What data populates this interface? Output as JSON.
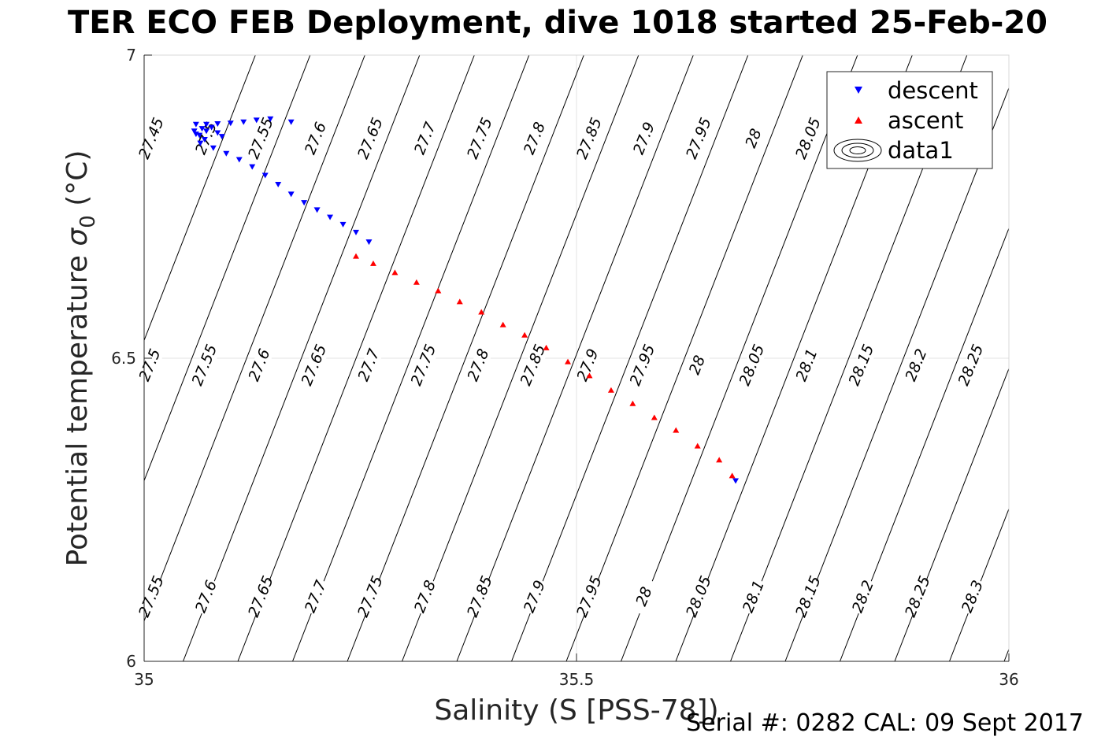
{
  "title": "TER ECO FEB Deployment, dive 1018 started 25-Feb-20",
  "footer": "Serial #: 0282  CAL: 09 Sept 2017",
  "chart_data": {
    "type": "scatter",
    "xlabel": "Salinity (S [PSS-78])",
    "ylabel_prefix": "Potential temperature ",
    "ylabel_symbol": "σ",
    "ylabel_sub": "0",
    "ylabel_suffix": " (°C)",
    "xlim": [
      35,
      36
    ],
    "ylim": [
      6,
      7
    ],
    "xticks": [
      35,
      35.5,
      36
    ],
    "yticks": [
      6,
      6.5,
      7
    ],
    "xtick_labels": [
      "35",
      "35.5",
      "36"
    ],
    "ytick_labels": [
      "6",
      "6.5",
      "7"
    ],
    "grid": true,
    "legend_position": "top-right",
    "series": [
      {
        "name": "descent",
        "marker": "triangle-down",
        "color": "#0000ff",
        "points": [
          [
            35.17,
            6.89
          ],
          [
            35.146,
            6.895
          ],
          [
            35.13,
            6.893
          ],
          [
            35.115,
            6.89
          ],
          [
            35.1,
            6.888
          ],
          [
            35.085,
            6.887
          ],
          [
            35.072,
            6.886
          ],
          [
            35.06,
            6.886
          ],
          [
            35.067,
            6.879
          ],
          [
            35.078,
            6.881
          ],
          [
            35.085,
            6.872
          ],
          [
            35.072,
            6.875
          ],
          [
            35.09,
            6.866
          ],
          [
            35.064,
            6.868
          ],
          [
            35.07,
            6.861
          ],
          [
            35.06,
            6.87
          ],
          [
            35.058,
            6.875
          ],
          [
            35.065,
            6.855
          ],
          [
            35.08,
            6.847
          ],
          [
            35.095,
            6.838
          ],
          [
            35.11,
            6.828
          ],
          [
            35.125,
            6.816
          ],
          [
            35.14,
            6.802
          ],
          [
            35.155,
            6.787
          ],
          [
            35.17,
            6.771
          ],
          [
            35.185,
            6.757
          ],
          [
            35.2,
            6.745
          ],
          [
            35.215,
            6.733
          ],
          [
            35.23,
            6.721
          ],
          [
            35.245,
            6.708
          ],
          [
            35.26,
            6.692
          ],
          [
            35.684,
            6.298
          ]
        ]
      },
      {
        "name": "ascent",
        "marker": "triangle-up",
        "color": "#ff0000",
        "points": [
          [
            35.245,
            6.668
          ],
          [
            35.265,
            6.656
          ],
          [
            35.29,
            6.641
          ],
          [
            35.315,
            6.625
          ],
          [
            35.34,
            6.611
          ],
          [
            35.365,
            6.593
          ],
          [
            35.39,
            6.576
          ],
          [
            35.415,
            6.555
          ],
          [
            35.44,
            6.538
          ],
          [
            35.465,
            6.517
          ],
          [
            35.49,
            6.494
          ],
          [
            35.515,
            6.471
          ],
          [
            35.54,
            6.447
          ],
          [
            35.565,
            6.425
          ],
          [
            35.59,
            6.402
          ],
          [
            35.615,
            6.381
          ],
          [
            35.64,
            6.355
          ],
          [
            35.665,
            6.332
          ],
          [
            35.68,
            6.306
          ]
        ]
      }
    ],
    "legend_extra_entry": "data1",
    "contour_labels_top": [
      "27.45",
      "27.5",
      "27.55",
      "27.6",
      "27.65",
      "27.7",
      "27.75",
      "27.8",
      "27.85",
      "27.9",
      "27.95",
      "28",
      "28.05"
    ],
    "contour_labels_middle": [
      "27.5",
      "27.55",
      "27.6",
      "27.65",
      "27.7",
      "27.75",
      "27.8",
      "27.85",
      "27.9",
      "27.95",
      "28",
      "28.05",
      "28.1",
      "28.15",
      "28.2",
      "28.25"
    ],
    "contour_labels_bottom": [
      "27.55",
      "27.6",
      "27.65",
      "27.7",
      "27.75",
      "27.8",
      "27.85",
      "27.9",
      "27.95",
      "28",
      "28.05",
      "28.1",
      "28.15",
      "28.2",
      "28.25",
      "28.3"
    ]
  }
}
